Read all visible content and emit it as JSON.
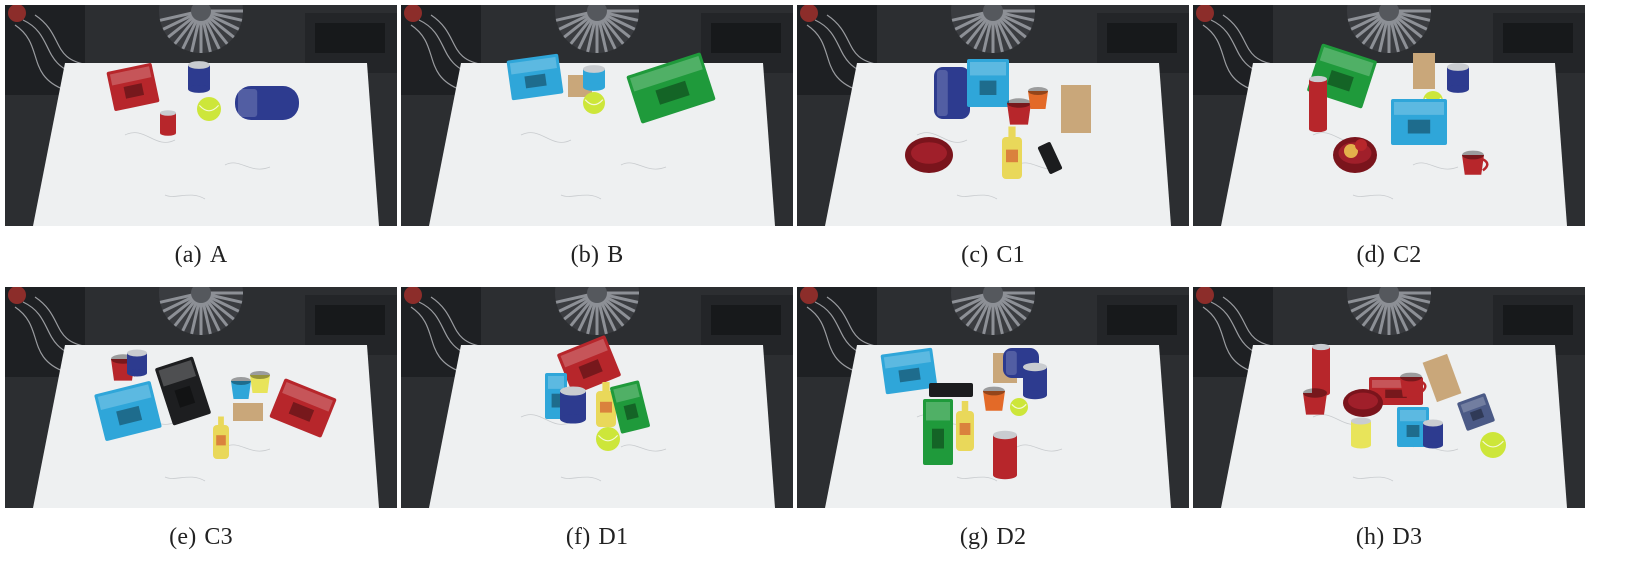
{
  "figure": {
    "panels": [
      {
        "label": "(a)",
        "name": "A"
      },
      {
        "label": "(b)",
        "name": "B"
      },
      {
        "label": "(c)",
        "name": "C1"
      },
      {
        "label": "(d)",
        "name": "C2"
      },
      {
        "label": "(e)",
        "name": "C3"
      },
      {
        "label": "(f)",
        "name": "D1"
      },
      {
        "label": "(g)",
        "name": "D2"
      },
      {
        "label": "(h)",
        "name": "D3"
      }
    ]
  },
  "colors": {
    "table": "#eef0f1",
    "background": "#2c2e31",
    "red": "#b7262b",
    "blue": "#2fa6d9",
    "green": "#1f9a3b",
    "navy": "#2d3b8f",
    "yellow": "#e8e45a",
    "wood": "#c9a77a",
    "tennis_ball": "#cde63a",
    "mustard": "#e9d85a",
    "maroon": "#7a141c"
  },
  "scene_objects": {
    "A": [
      "cracker-box",
      "coffee-can",
      "tennis-ball",
      "soup-can",
      "blue-pitcher"
    ],
    "B": [
      "blue-box",
      "wood-block",
      "blue-cup",
      "tennis-ball",
      "green-box"
    ],
    "C1": [
      "blue-pitcher",
      "blue-box",
      "red-cup",
      "orange-cup",
      "wood-block",
      "bowl",
      "mustard-bottle",
      "black-marker"
    ],
    "C2": [
      "green-box",
      "wood-block",
      "coffee-can",
      "chips-can",
      "tennis-ball",
      "blue-box",
      "bowl-with-fruit",
      "red-mug"
    ],
    "C3": [
      "red-mug",
      "coffee-can",
      "black-box",
      "blue-cup",
      "yellow-cup",
      "cracker-box",
      "blue-box",
      "mustard-bottle"
    ],
    "D1": [
      "cracker-box",
      "blue-box",
      "coffee-can",
      "mustard-bottle",
      "green-box",
      "tennis-ball"
    ],
    "D2": [
      "blue-box",
      "wood-block",
      "blue-pitcher",
      "black-marker",
      "orange-cup",
      "green-box",
      "mustard-bottle",
      "coffee-can",
      "chips-can",
      "tennis-ball"
    ],
    "D3": [
      "chips-can",
      "red-box",
      "wood-block",
      "red-cup",
      "bowl",
      "red-mug",
      "blue-box",
      "soup-can",
      "gray-mug",
      "tennis-ball"
    ]
  }
}
